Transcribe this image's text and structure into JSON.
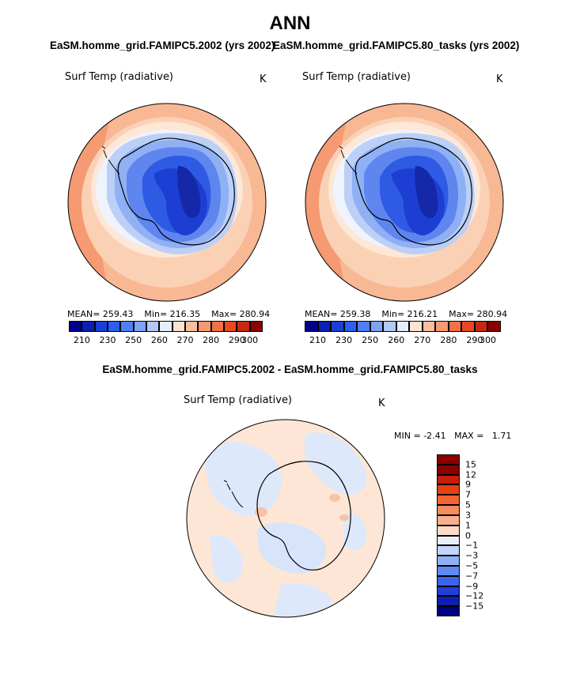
{
  "title": "ANN",
  "panel_left": {
    "run_title": "EaSM.homme_grid.FAMIPC5.2002 (yrs 2002)",
    "variable": "Surf Temp (radiative)",
    "units": "K",
    "mean_label": "MEAN=",
    "mean": "259.43",
    "min_label": "Min=",
    "min": "216.35",
    "max_label": "Max=",
    "max": "280.94"
  },
  "panel_right": {
    "run_title": "EaSM.homme_grid.FAMIPC5.80_tasks (yrs 2002)",
    "variable": "Surf Temp (radiative)",
    "units": "K",
    "mean_label": "MEAN=",
    "mean": "259.38",
    "min_label": "Min=",
    "min": "216.21",
    "max_label": "Max=",
    "max": "280.94"
  },
  "panel_diff": {
    "run_title": "EaSM.homme_grid.FAMIPC5.2002 - EaSM.homme_grid.FAMIPC5.80_tasks",
    "variable": "Surf Temp (radiative)",
    "units": "K",
    "min_label": "MIN =",
    "min": "-2.41",
    "max_label": "MAX =",
    "max": "1.71"
  },
  "abs_colorbar": {
    "colors": [
      "#00008b",
      "#0b1fb0",
      "#1a3fd6",
      "#2a5ff0",
      "#4f7ff5",
      "#7ea3f7",
      "#b3c8f7",
      "#e6eefb",
      "#fde3d0",
      "#f9c0a0",
      "#f79a72",
      "#f37049",
      "#e8481f",
      "#c82810",
      "#8b0000"
    ],
    "labels": [
      "210",
      "230",
      "250",
      "260",
      "270",
      "280",
      "290",
      "300"
    ]
  },
  "diff_colorbar": {
    "colors": [
      "#8b0000",
      "#c81e0a",
      "#e64012",
      "#f46432",
      "#f68c5e",
      "#f8b08e",
      "#fcdcc8",
      "#e8f1fb",
      "#c2d6f7",
      "#8eb0f5",
      "#5f8af2",
      "#3a63ee",
      "#1f3fd6",
      "#0c1fb0",
      "#000080"
    ],
    "labels": [
      "15",
      "12",
      "9",
      "7",
      "5",
      "3",
      "1",
      "0",
      "−1",
      "−3",
      "−5",
      "−7",
      "−9",
      "−12",
      "−15"
    ]
  }
}
